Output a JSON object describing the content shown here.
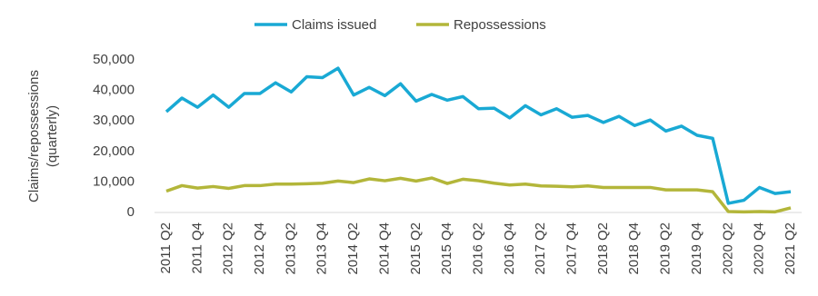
{
  "chart_data": {
    "type": "line",
    "ylabel": [
      "Claims/repossessions",
      "(quarterly)"
    ],
    "categories": [
      "2011 Q2",
      null,
      "2011 Q4",
      null,
      "2012 Q2",
      null,
      "2012 Q4",
      null,
      "2013 Q2",
      null,
      "2013 Q4",
      null,
      "2014 Q2",
      null,
      "2014 Q4",
      null,
      "2015 Q2",
      null,
      "2015 Q4",
      null,
      "2016 Q2",
      null,
      "2016 Q4",
      null,
      "2017 Q2",
      null,
      "2017 Q4",
      null,
      "2018 Q2",
      null,
      "2018 Q4",
      null,
      "2019 Q2",
      null,
      "2019 Q4",
      null,
      "2020 Q2",
      null,
      "2020 Q4",
      null,
      "2021 Q2"
    ],
    "series": [
      {
        "name": "Claims issued",
        "color": "#19a9d4",
        "values": [
          33000,
          37500,
          34500,
          38500,
          34500,
          39000,
          39000,
          42500,
          39500,
          44500,
          44200,
          47300,
          38500,
          41000,
          38300,
          42200,
          36500,
          38700,
          36800,
          38000,
          34000,
          34200,
          31000,
          35000,
          32000,
          34000,
          31200,
          31800,
          29500,
          31500,
          28500,
          30300,
          26700,
          28300,
          25300,
          24300,
          3000,
          4000,
          8200,
          6200,
          6800
        ]
      },
      {
        "name": "Repossessions",
        "color": "#b3b63a",
        "values": [
          7000,
          8800,
          8000,
          8500,
          7900,
          8800,
          8800,
          9300,
          9300,
          9400,
          9600,
          10300,
          9800,
          11000,
          10400,
          11200,
          10300,
          11300,
          9500,
          10900,
          10400,
          9600,
          9000,
          9300,
          8700,
          8600,
          8400,
          8700,
          8200,
          8200,
          8200,
          8200,
          7400,
          7400,
          7400,
          6800,
          300,
          200,
          300,
          200,
          1500
        ]
      }
    ],
    "ylim": [
      0,
      50000
    ],
    "yticks": [
      0,
      {
        "value": 10000,
        "label": "10,000"
      },
      {
        "value": 20000,
        "label": "20,000"
      },
      {
        "value": 30000,
        "label": "30,000"
      },
      {
        "value": 40000,
        "label": "40,000"
      },
      {
        "value": 50000,
        "label": "50,000"
      }
    ],
    "grid": false
  }
}
